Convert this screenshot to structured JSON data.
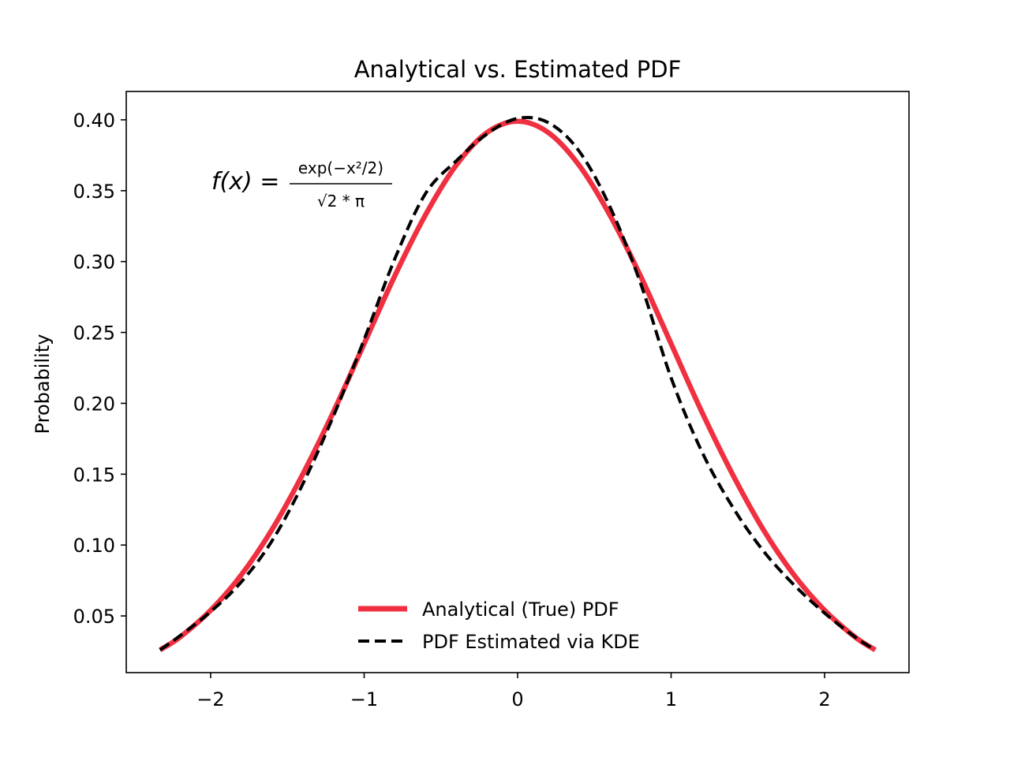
{
  "chart_data": {
    "type": "line",
    "title": "Analytical vs. Estimated PDF",
    "xlabel": "",
    "ylabel": "Probability",
    "xlim": [
      -2.55,
      2.55
    ],
    "ylim": [
      0.01,
      0.42
    ],
    "x_ticks": [
      -2,
      -1,
      0,
      1,
      2
    ],
    "x_tick_labels": [
      "−2",
      "−1",
      "0",
      "1",
      "2"
    ],
    "y_ticks": [
      0.05,
      0.1,
      0.15,
      0.2,
      0.25,
      0.3,
      0.35,
      0.4
    ],
    "y_tick_labels": [
      "0.05",
      "0.10",
      "0.15",
      "0.20",
      "0.25",
      "0.30",
      "0.35",
      "0.40"
    ],
    "grid": false,
    "legend_position": "lower-center",
    "annotation": {
      "lhs": "f(x) =",
      "numerator": "exp(−x²/2)",
      "denominator": "√2 * π"
    },
    "series": [
      {
        "name": "Analytical (True) PDF",
        "color": "#f03040",
        "style": "solid",
        "x": [
          -2.33,
          -2.2,
          -2.0,
          -1.8,
          -1.6,
          -1.4,
          -1.2,
          -1.0,
          -0.8,
          -0.6,
          -0.4,
          -0.2,
          0.0,
          0.2,
          0.4,
          0.6,
          0.8,
          1.0,
          1.2,
          1.4,
          1.6,
          1.8,
          2.0,
          2.2,
          2.33
        ],
        "values": [
          0.026,
          0.035,
          0.054,
          0.079,
          0.111,
          0.15,
          0.194,
          0.242,
          0.29,
          0.333,
          0.368,
          0.391,
          0.399,
          0.391,
          0.368,
          0.333,
          0.29,
          0.242,
          0.194,
          0.15,
          0.111,
          0.079,
          0.054,
          0.035,
          0.026
        ]
      },
      {
        "name": "PDF Estimated via KDE",
        "color": "#000000",
        "style": "dashed",
        "x": [
          -2.33,
          -2.2,
          -2.0,
          -1.8,
          -1.6,
          -1.4,
          -1.2,
          -1.0,
          -0.8,
          -0.6,
          -0.4,
          -0.2,
          0.0,
          0.2,
          0.4,
          0.6,
          0.8,
          1.0,
          1.2,
          1.4,
          1.6,
          1.8,
          2.0,
          2.2,
          2.33
        ],
        "values": [
          0.026,
          0.036,
          0.053,
          0.074,
          0.103,
          0.143,
          0.191,
          0.245,
          0.302,
          0.348,
          0.371,
          0.39,
          0.401,
          0.398,
          0.378,
          0.339,
          0.285,
          0.218,
          0.166,
          0.127,
          0.096,
          0.072,
          0.052,
          0.035,
          0.026
        ]
      }
    ]
  }
}
